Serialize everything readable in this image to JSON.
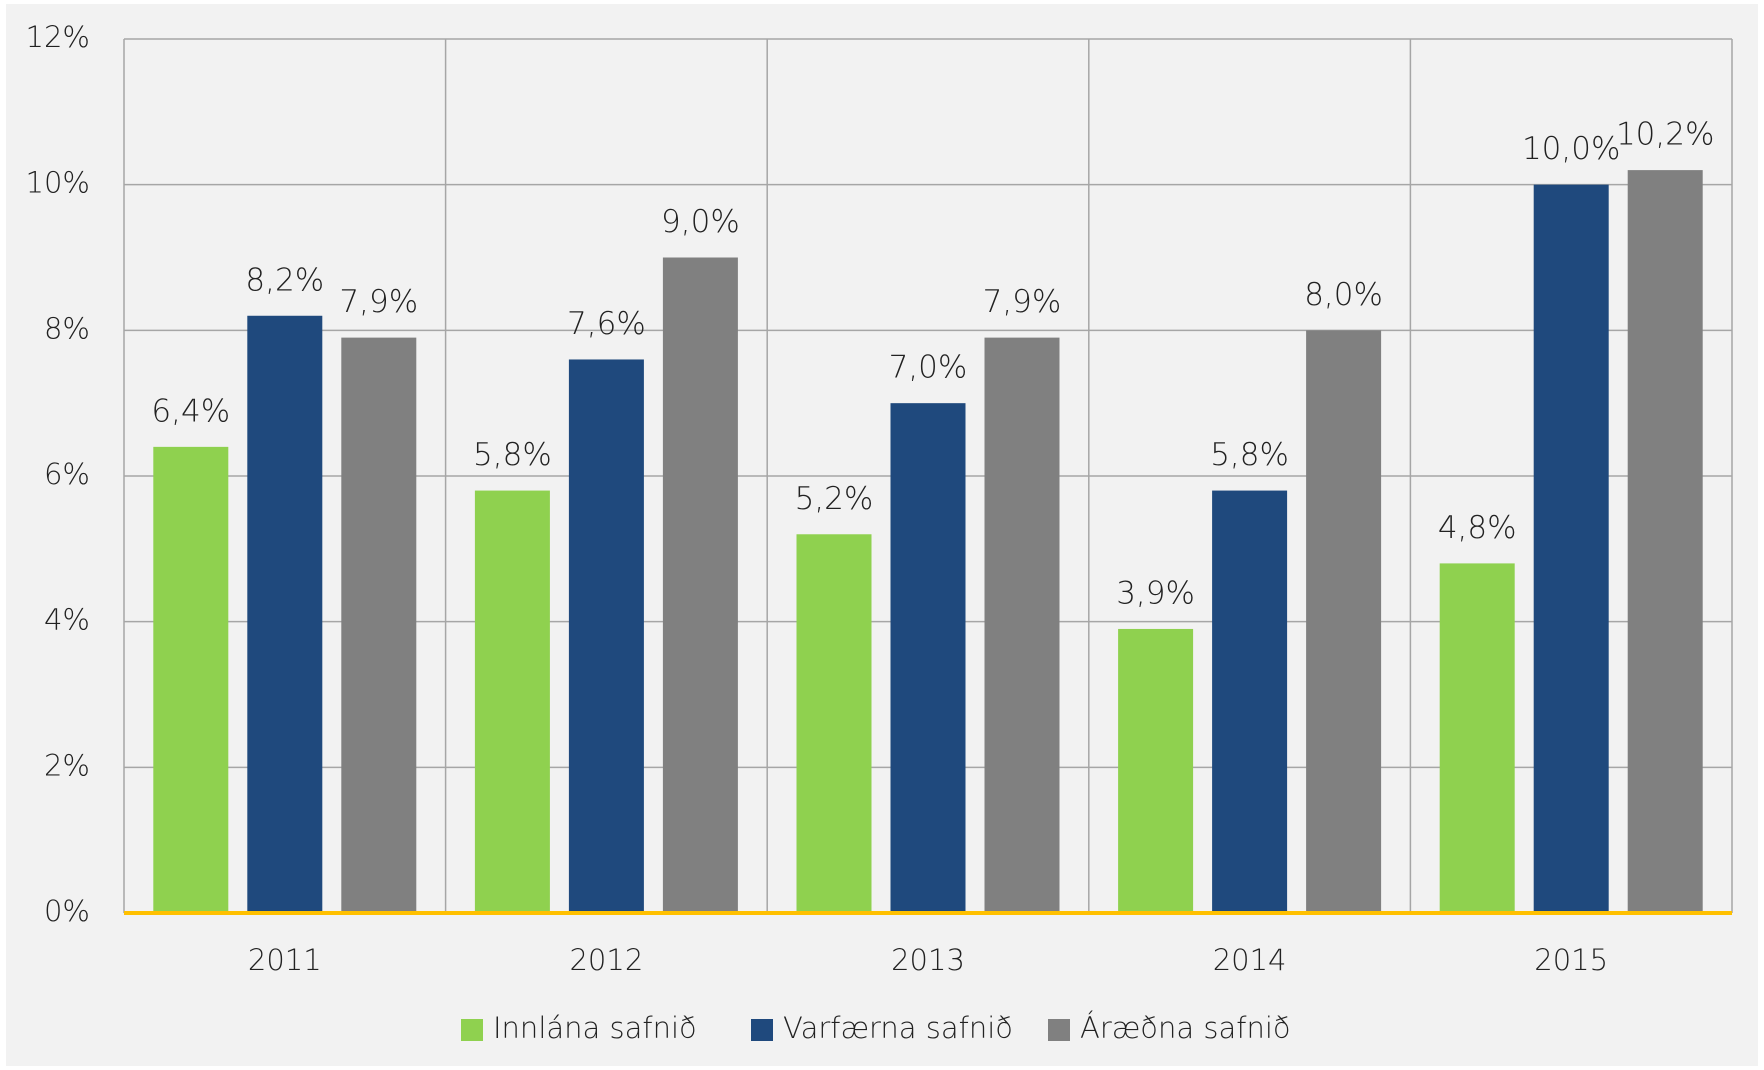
{
  "chart_data": {
    "type": "bar",
    "categories": [
      "2011",
      "2012",
      "2013",
      "2014",
      "2015"
    ],
    "series": [
      {
        "name": "Innlána safnið",
        "color": "#8fd14f",
        "values": [
          6.4,
          5.8,
          5.2,
          3.9,
          4.8
        ],
        "value_labels": [
          "6,4%",
          "5,8%",
          "5,2%",
          "3,9%",
          "4,8%"
        ]
      },
      {
        "name": "Varfærna safnið",
        "color": "#1f497d",
        "values": [
          8.2,
          7.6,
          7.0,
          5.8,
          10.0
        ],
        "value_labels": [
          "8,2%",
          "7,6%",
          "7,0%",
          "5,8%",
          "10,0%"
        ]
      },
      {
        "name": "Áræðna safnið",
        "color": "#808080",
        "values": [
          7.9,
          9.0,
          7.9,
          8.0,
          10.2
        ],
        "value_labels": [
          "7,9%",
          "9,0%",
          "7,9%",
          "8,0%",
          "10,2%"
        ]
      }
    ],
    "ylim": [
      0,
      12
    ],
    "yticks": [
      {
        "value": 0,
        "label": "0%"
      },
      {
        "value": 2,
        "label": "2%"
      },
      {
        "value": 4,
        "label": "4%"
      },
      {
        "value": 6,
        "label": "6%"
      },
      {
        "value": 8,
        "label": "8%"
      },
      {
        "value": 10,
        "label": "10%"
      },
      {
        "value": 12,
        "label": "12%"
      }
    ],
    "grid": true,
    "legend": "bottom"
  }
}
